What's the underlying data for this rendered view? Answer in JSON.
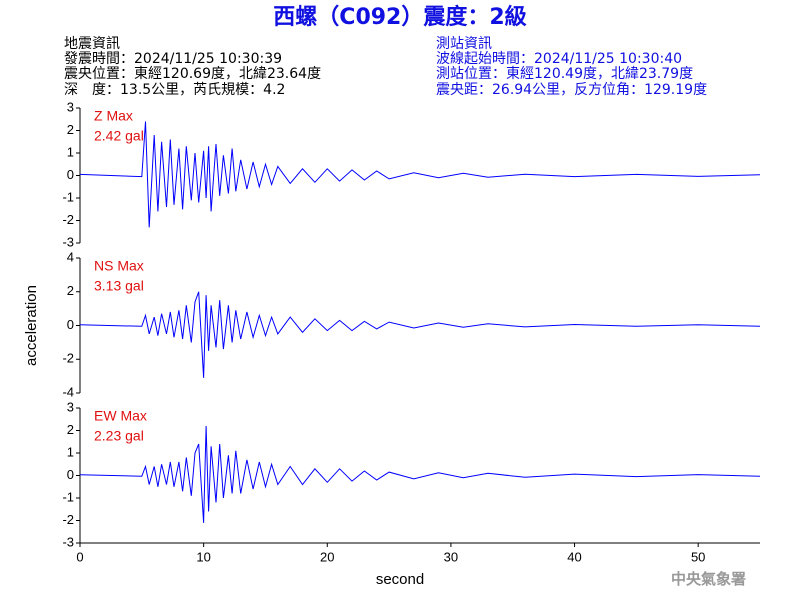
{
  "header": {
    "title": "西螺（C092）震度：2級",
    "left": [
      "地震資訊",
      "發震時間：2024/11/25 10:30:39",
      "震央位置：東經120.69度，北緯23.64度",
      "深　度：13.5公里，芮氏規模：4.2"
    ],
    "right": [
      "測站資訊",
      "波線起始時間：2024/11/25 10:30:40",
      "測站位置：東經120.49度，北緯23.79度",
      "震央距：26.94公里，反方位角：129.19度"
    ]
  },
  "footer": "中央氣象署",
  "chart_data": [
    {
      "type": "line",
      "annotation": [
        "Z Max",
        "2.42 gal"
      ],
      "color": "#0000ff",
      "ylim": [
        -3,
        3
      ],
      "yticks": [
        -3,
        -2,
        -1,
        0,
        1,
        2,
        3
      ],
      "x": [
        0,
        5,
        5.3,
        5.6,
        6,
        6.3,
        6.6,
        7,
        7.3,
        7.6,
        8,
        8.3,
        8.6,
        9,
        9.3,
        9.6,
        10,
        10.2,
        10.4,
        10.6,
        11,
        11.3,
        11.6,
        12,
        12.3,
        12.6,
        13,
        13.5,
        14,
        14.5,
        15,
        15.5,
        16,
        17,
        18,
        19,
        20,
        21,
        22,
        23,
        24,
        25,
        27,
        29,
        31,
        33,
        36,
        40,
        45,
        50,
        55
      ],
      "values": [
        0.05,
        -0.05,
        2.4,
        -2.3,
        1.8,
        -1.6,
        1.5,
        -1.4,
        1.6,
        -1.3,
        1.2,
        -1.5,
        1.3,
        -1.1,
        1.0,
        -1.2,
        1.1,
        -1.0,
        1.3,
        -1.6,
        1.4,
        -0.9,
        0.9,
        -0.8,
        1.2,
        -0.7,
        0.7,
        -0.6,
        0.6,
        -0.5,
        0.5,
        -0.4,
        0.4,
        -0.35,
        0.3,
        -0.3,
        0.3,
        -0.25,
        0.25,
        -0.2,
        0.2,
        -0.15,
        0.12,
        -0.1,
        0.1,
        -0.08,
        0.06,
        -0.05,
        0.05,
        -0.04,
        0.03
      ]
    },
    {
      "type": "line",
      "annotation": [
        "NS Max",
        "3.13 gal"
      ],
      "color": "#0000ff",
      "ylabel": "acceleration",
      "ylim": [
        -4,
        4
      ],
      "yticks": [
        -4,
        -2,
        0,
        2,
        4
      ],
      "x": [
        0,
        5,
        5.3,
        5.6,
        6,
        6.3,
        6.6,
        7,
        7.3,
        7.6,
        8,
        8.3,
        8.6,
        9,
        9.3,
        9.6,
        10,
        10.2,
        10.4,
        10.6,
        11,
        11.3,
        11.6,
        12,
        12.3,
        12.6,
        13,
        13.5,
        14,
        14.5,
        15,
        15.5,
        16,
        17,
        18,
        19,
        20,
        21,
        22,
        23,
        24,
        25,
        27,
        29,
        31,
        33,
        36,
        40,
        45,
        50,
        55
      ],
      "values": [
        0.05,
        -0.05,
        0.6,
        -0.5,
        0.5,
        -0.6,
        0.7,
        -0.5,
        0.8,
        -0.7,
        0.9,
        -0.8,
        1.2,
        -1.0,
        1.4,
        2.0,
        -3.1,
        1.8,
        -1.5,
        1.2,
        -1.3,
        1.5,
        -1.4,
        1.2,
        -1.0,
        0.9,
        -0.8,
        0.8,
        -0.7,
        0.6,
        -0.6,
        0.5,
        -0.5,
        0.5,
        -0.4,
        0.4,
        -0.3,
        0.3,
        -0.3,
        0.25,
        -0.2,
        0.2,
        -0.15,
        0.15,
        -0.1,
        0.1,
        -0.08,
        0.06,
        -0.05,
        0.05,
        -0.04
      ]
    },
    {
      "type": "line",
      "annotation": [
        "EW Max",
        "2.23 gal"
      ],
      "color": "#0000ff",
      "xlabel": "second",
      "ylim": [
        -3,
        3
      ],
      "yticks": [
        -3,
        -2,
        -1,
        0,
        1,
        2,
        3
      ],
      "xlim": [
        0,
        55
      ],
      "xticks": [
        0,
        10,
        20,
        30,
        40,
        50
      ],
      "x": [
        0,
        5,
        5.3,
        5.6,
        6,
        6.3,
        6.6,
        7,
        7.3,
        7.6,
        8,
        8.3,
        8.6,
        9,
        9.3,
        9.6,
        10,
        10.2,
        10.4,
        10.6,
        11,
        11.3,
        11.6,
        12,
        12.3,
        12.6,
        13,
        13.5,
        14,
        14.5,
        15,
        15.5,
        16,
        17,
        18,
        19,
        20,
        21,
        22,
        23,
        24,
        25,
        27,
        29,
        31,
        33,
        36,
        40,
        45,
        50,
        55
      ],
      "values": [
        0.03,
        -0.03,
        0.4,
        -0.4,
        0.4,
        -0.5,
        0.5,
        -0.4,
        0.6,
        -0.5,
        0.6,
        -0.7,
        0.8,
        -0.9,
        1.0,
        1.4,
        -2.1,
        2.2,
        -1.6,
        1.3,
        -1.2,
        1.4,
        -1.0,
        0.9,
        -0.8,
        1.1,
        -0.8,
        0.7,
        -0.6,
        0.6,
        -0.5,
        0.5,
        -0.4,
        0.4,
        -0.4,
        0.3,
        -0.3,
        0.3,
        -0.25,
        0.2,
        -0.2,
        0.15,
        -0.15,
        0.12,
        -0.1,
        0.1,
        -0.08,
        0.06,
        -0.05,
        0.04,
        -0.03
      ]
    }
  ]
}
